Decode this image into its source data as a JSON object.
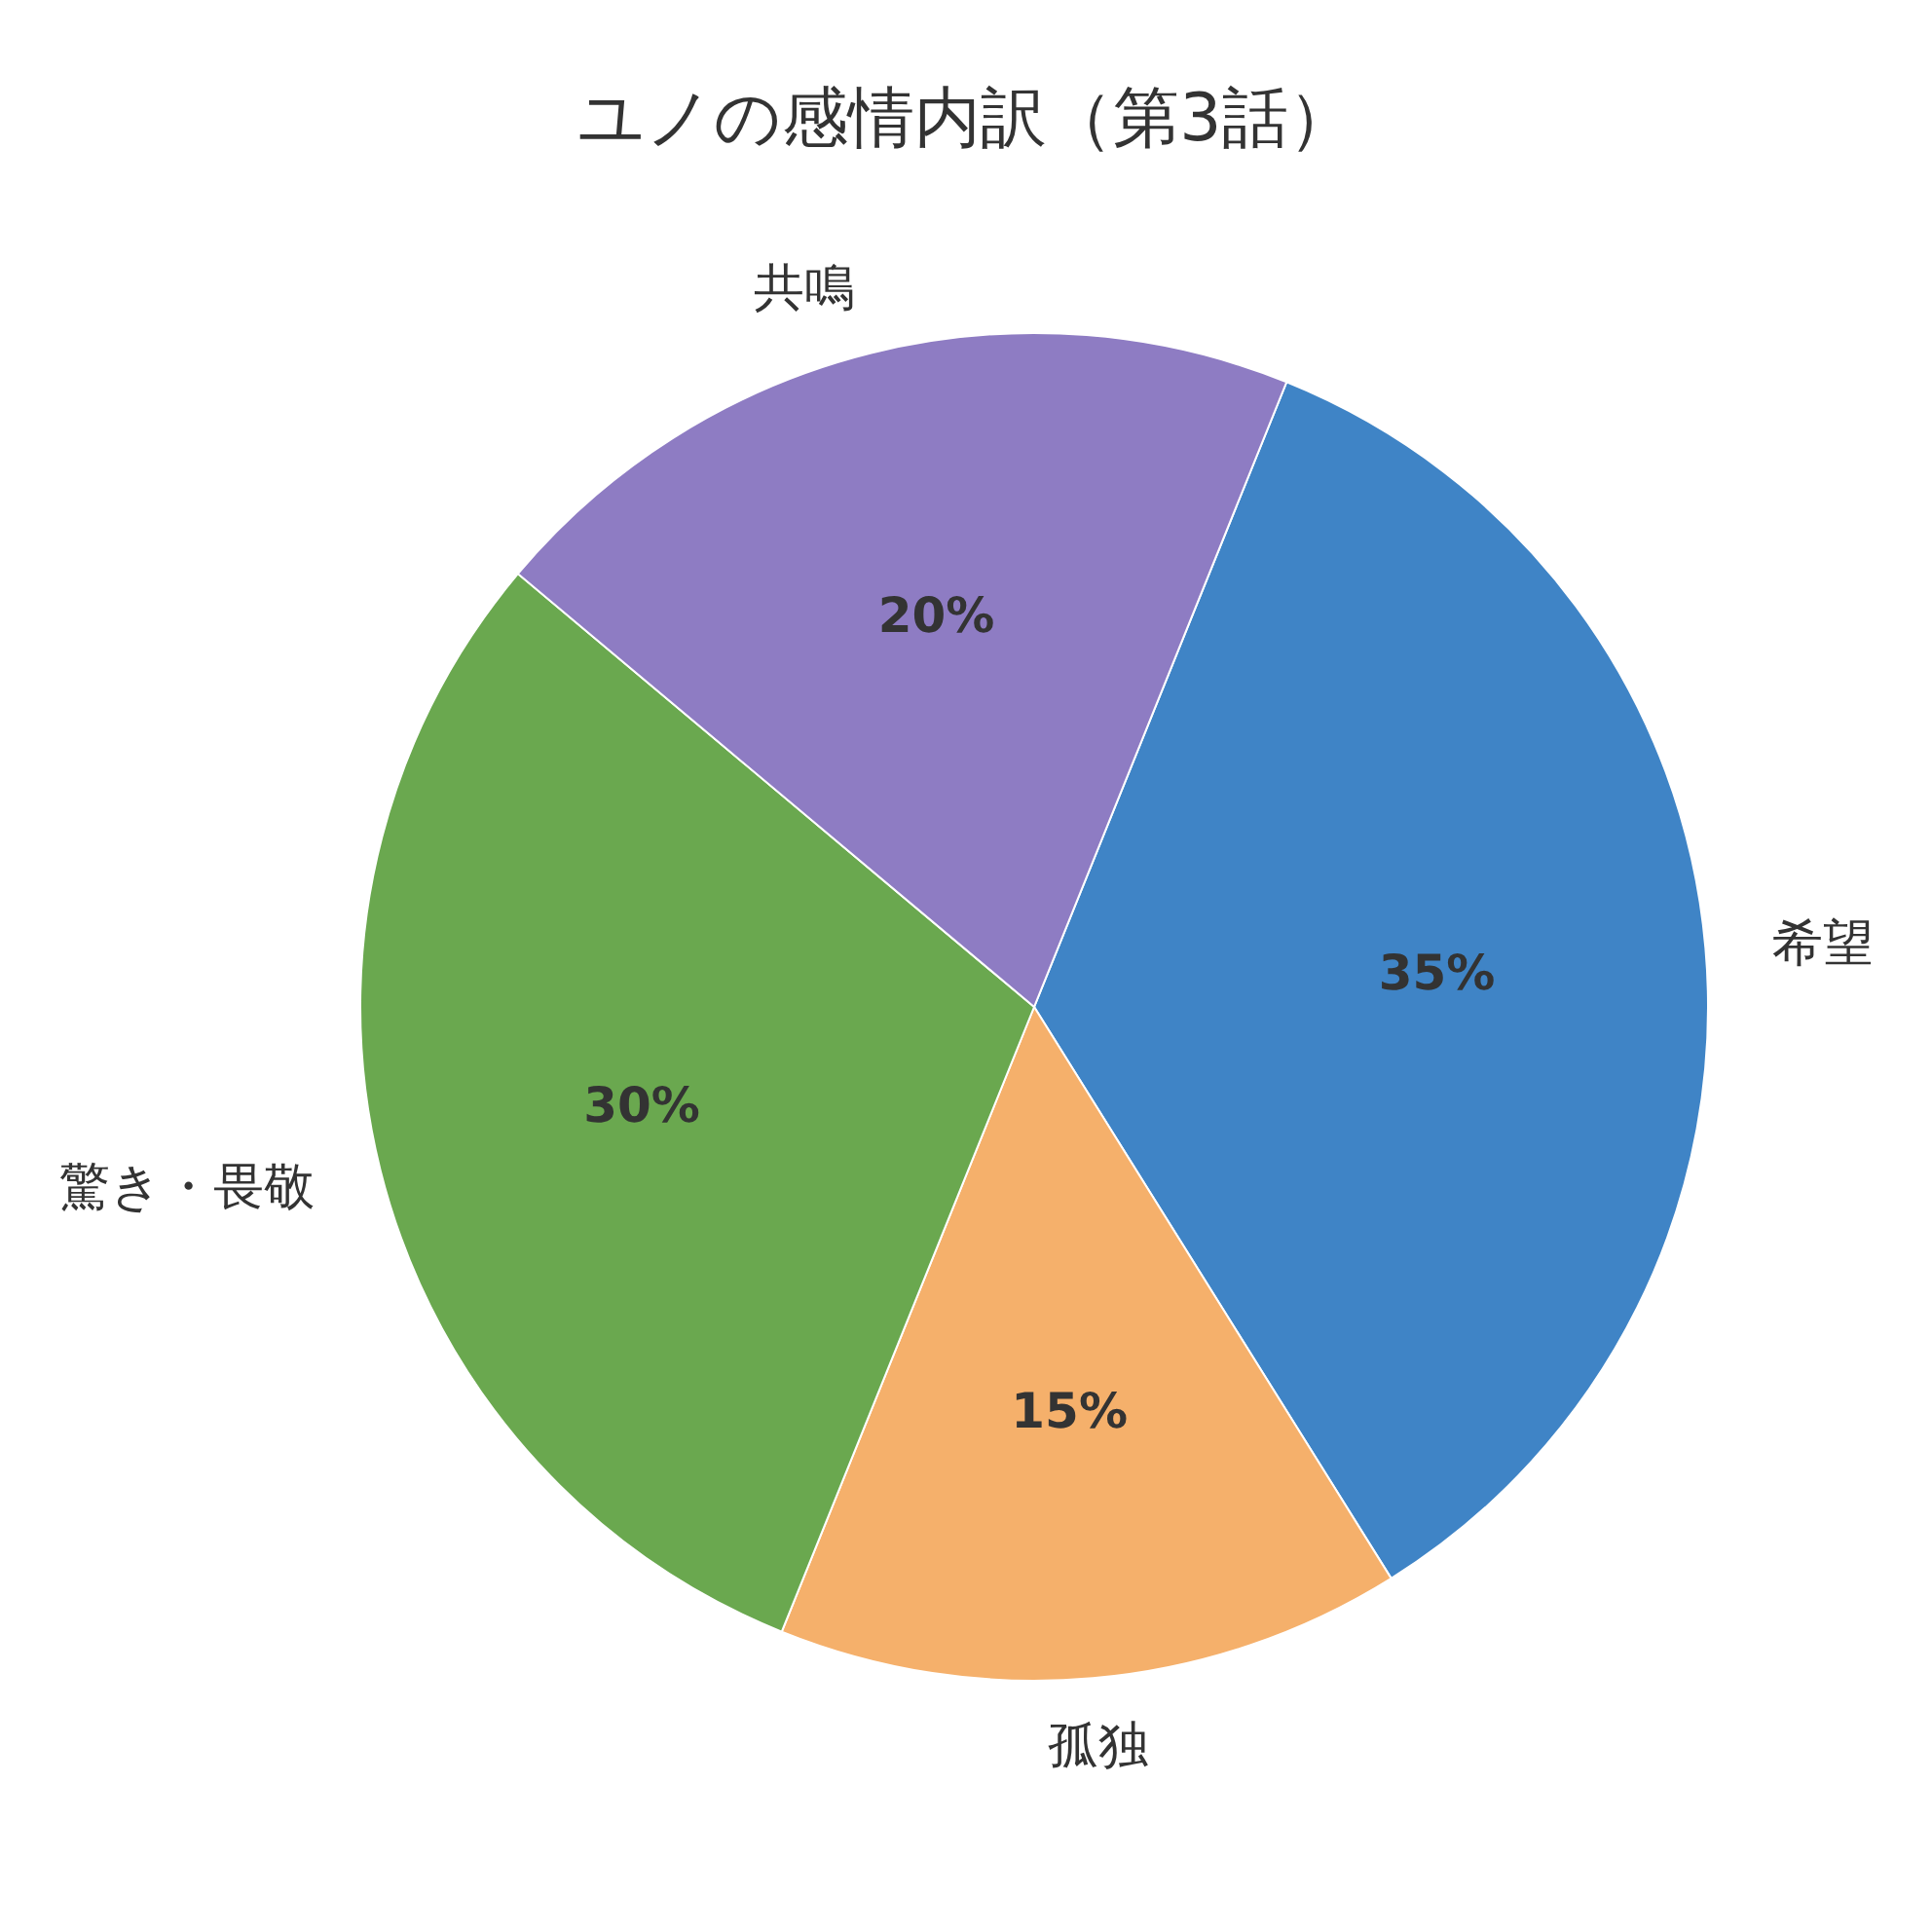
{
  "chart_data": {
    "type": "pie",
    "title": "ユノの感情内訳（第3話）",
    "categories": [
      "希望",
      "孤独",
      "驚き・畏敬",
      "共鳴"
    ],
    "values": [
      35,
      15,
      30,
      20
    ],
    "colors": [
      "#3f84c6",
      "#f5b06b",
      "#6aa84f",
      "#8e7cc3"
    ],
    "value_labels": [
      "35%",
      "15%",
      "30%",
      "20%"
    ]
  }
}
